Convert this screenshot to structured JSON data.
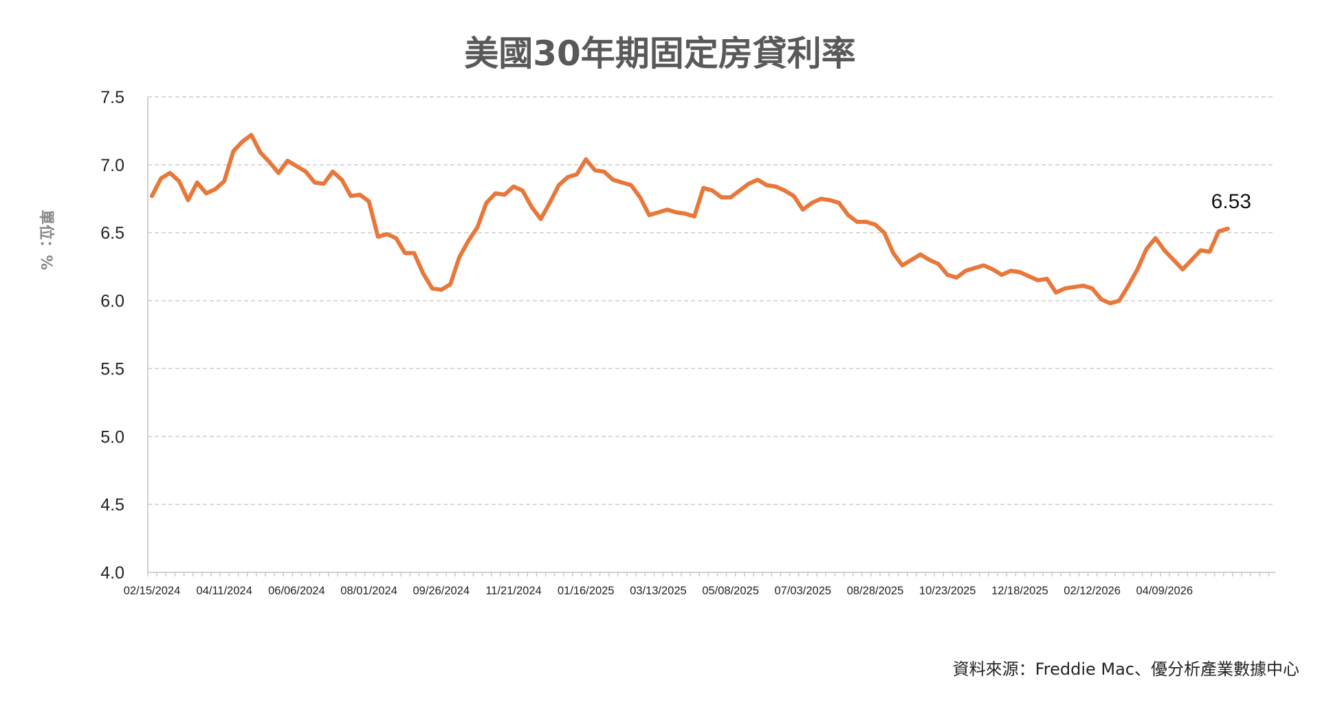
{
  "chart_data": {
    "type": "line",
    "title": "美國30年期固定房貸利率",
    "ylabel": "單位：%",
    "source": "資料來源：Freddie Mac、優分析產業數據中心",
    "ylim": [
      4.0,
      7.5
    ],
    "yticks": [
      "4.0",
      "4.5",
      "5.0",
      "5.5",
      "6.0",
      "6.5",
      "7.0",
      "7.5"
    ],
    "xtick_labels": [
      "02/15/2024",
      "04/11/2024",
      "06/06/2024",
      "08/01/2024",
      "09/26/2024",
      "11/21/2024",
      "01/16/2025",
      "03/13/2025",
      "05/08/2025",
      "07/03/2025",
      "08/28/2025",
      "10/23/2025",
      "12/18/2025",
      "02/12/2026",
      "04/09/2026"
    ],
    "grid": true,
    "line_color": "#E8773A",
    "series": [
      {
        "values": [
          6.77,
          6.9,
          6.94,
          6.88,
          6.74,
          6.87,
          6.79,
          6.82,
          6.88,
          7.1,
          7.17,
          7.22,
          7.09,
          7.02,
          6.94,
          7.03,
          6.99,
          6.95,
          6.87,
          6.86,
          6.95,
          6.89,
          6.77,
          6.78,
          6.73,
          6.47,
          6.49,
          6.46,
          6.35,
          6.35,
          6.2,
          6.09,
          6.08,
          6.12,
          6.32,
          6.44,
          6.54,
          6.72,
          6.79,
          6.78,
          6.84,
          6.81,
          6.69,
          6.6,
          6.72,
          6.85,
          6.91,
          6.93,
          7.04,
          6.96,
          6.95,
          6.89,
          6.87,
          6.85,
          6.76,
          6.63,
          6.65,
          6.67,
          6.65,
          6.64,
          6.62,
          6.83,
          6.81,
          6.76,
          6.76,
          6.81,
          6.86,
          6.89,
          6.85,
          6.84,
          6.81,
          6.77,
          6.67,
          6.72,
          6.75,
          6.74,
          6.72,
          6.63,
          6.58,
          6.58,
          6.56,
          6.5,
          6.35,
          6.26,
          6.3,
          6.34,
          6.3,
          6.27,
          6.19,
          6.17,
          6.22,
          6.24,
          6.26,
          6.23,
          6.19,
          6.22,
          6.21,
          6.18,
          6.15,
          6.16,
          6.06,
          6.09,
          6.1,
          6.11,
          6.09,
          6.01,
          5.98,
          6.0,
          6.11,
          6.23,
          6.38,
          6.46,
          6.37,
          6.3,
          6.23,
          6.3,
          6.37,
          6.36,
          6.51,
          6.53
        ]
      }
    ],
    "annotation": "6.53"
  }
}
